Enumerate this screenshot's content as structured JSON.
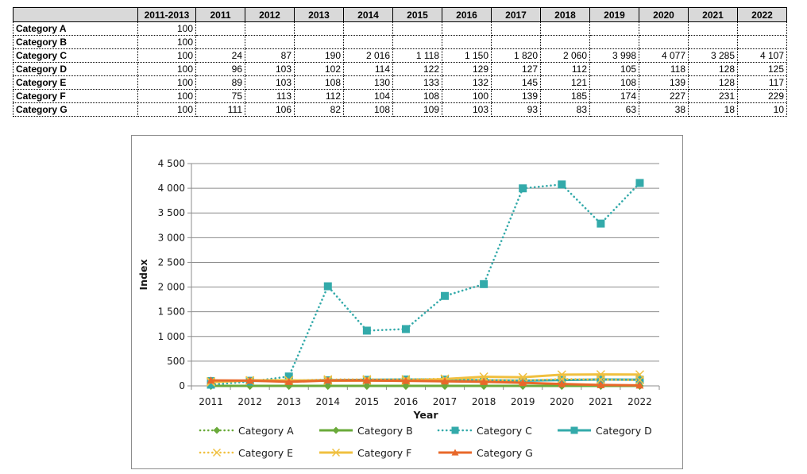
{
  "table": {
    "headers": [
      "",
      "2011-2013",
      "2011",
      "2012",
      "2013",
      "2014",
      "2015",
      "2016",
      "2017",
      "2018",
      "2019",
      "2020",
      "2021",
      "2022"
    ],
    "rows": [
      {
        "label": "Category A",
        "cells": [
          "100",
          "",
          "",
          "",
          "",
          "",
          "",
          "",
          "",
          "",
          "",
          "",
          ""
        ]
      },
      {
        "label": "Category B",
        "cells": [
          "100",
          "",
          "",
          "",
          "",
          "",
          "",
          "",
          "",
          "",
          "",
          "",
          ""
        ]
      },
      {
        "label": "Category C",
        "cells": [
          "100",
          "24",
          "87",
          "190",
          "2 016",
          "1 118",
          "1 150",
          "1 820",
          "2 060",
          "3 998",
          "4 077",
          "3 285",
          "4 107"
        ]
      },
      {
        "label": "Category D",
        "cells": [
          "100",
          "96",
          "103",
          "102",
          "114",
          "122",
          "129",
          "127",
          "112",
          "105",
          "118",
          "128",
          "125"
        ]
      },
      {
        "label": "Category E",
        "cells": [
          "100",
          "89",
          "103",
          "108",
          "130",
          "133",
          "132",
          "145",
          "121",
          "108",
          "139",
          "128",
          "117"
        ]
      },
      {
        "label": "Category F",
        "cells": [
          "100",
          "75",
          "113",
          "112",
          "104",
          "108",
          "100",
          "139",
          "185",
          "174",
          "227",
          "231",
          "229"
        ]
      },
      {
        "label": "Category G",
        "cells": [
          "100",
          "111",
          "106",
          "82",
          "108",
          "109",
          "103",
          "93",
          "83",
          "63",
          "38",
          "18",
          "10"
        ]
      }
    ]
  },
  "chart_data": {
    "type": "line",
    "title": "",
    "xlabel": "Year",
    "ylabel": "Index",
    "ylim": [
      0,
      4500
    ],
    "yticks": [
      0,
      500,
      1000,
      1500,
      2000,
      2500,
      3000,
      3500,
      4000,
      4500
    ],
    "ytick_labels": [
      "0",
      "500",
      "1 000",
      "1 500",
      "2 000",
      "2 500",
      "3 000",
      "3 500",
      "4 000",
      "4 500"
    ],
    "x": [
      "2011",
      "2012",
      "2013",
      "2014",
      "2015",
      "2016",
      "2017",
      "2018",
      "2019",
      "2020",
      "2021",
      "2022"
    ],
    "grid": "horizontal",
    "legend_position": "bottom",
    "series": [
      {
        "name": "Category A",
        "color": "#6aaa3a",
        "dash": "dotted",
        "marker": "diamond",
        "values": [
          0,
          0,
          0,
          0,
          0,
          0,
          0,
          0,
          0,
          0,
          0,
          0
        ]
      },
      {
        "name": "Category B",
        "color": "#6aaa3a",
        "dash": "solid",
        "marker": "diamond",
        "values": [
          0,
          0,
          0,
          0,
          0,
          0,
          0,
          0,
          0,
          0,
          0,
          0
        ]
      },
      {
        "name": "Category C",
        "color": "#33aaaa",
        "dash": "dotted",
        "marker": "square",
        "values": [
          24,
          87,
          190,
          2016,
          1118,
          1150,
          1820,
          2060,
          3998,
          4077,
          3285,
          4107
        ]
      },
      {
        "name": "Category D",
        "color": "#33aaaa",
        "dash": "solid",
        "marker": "square",
        "values": [
          96,
          103,
          102,
          114,
          122,
          129,
          127,
          112,
          105,
          118,
          128,
          125
        ]
      },
      {
        "name": "Category E",
        "color": "#f0c040",
        "dash": "dotted",
        "marker": "x",
        "values": [
          89,
          103,
          108,
          130,
          133,
          132,
          145,
          121,
          108,
          139,
          128,
          117
        ]
      },
      {
        "name": "Category F",
        "color": "#f0c040",
        "dash": "solid",
        "marker": "x",
        "values": [
          75,
          113,
          112,
          104,
          108,
          100,
          139,
          185,
          174,
          227,
          231,
          229
        ]
      },
      {
        "name": "Category G",
        "color": "#e8682a",
        "dash": "solid",
        "marker": "triangle",
        "values": [
          111,
          106,
          82,
          108,
          109,
          103,
          93,
          83,
          63,
          38,
          18,
          10
        ]
      }
    ]
  }
}
